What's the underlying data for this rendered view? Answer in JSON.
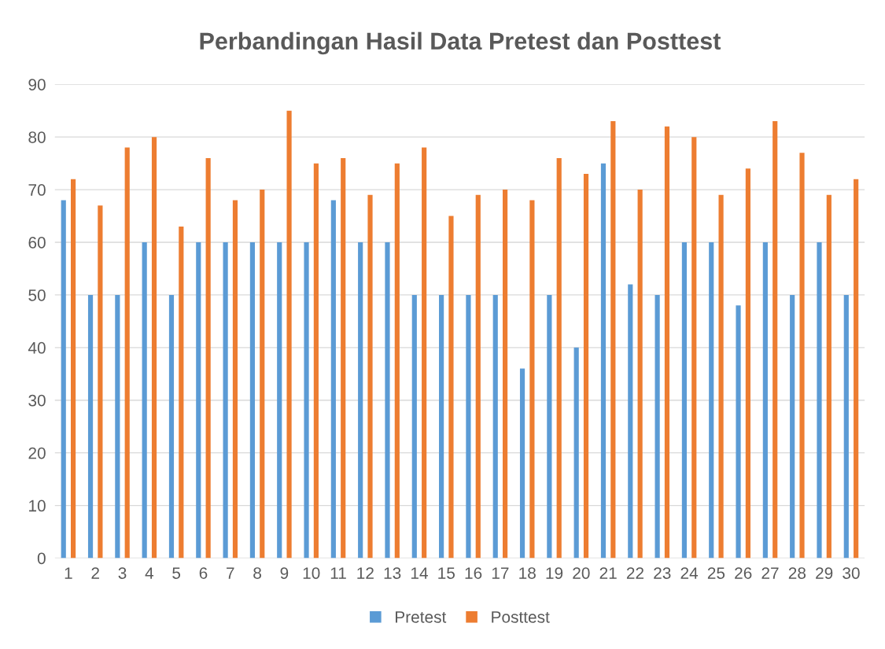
{
  "chart_data": {
    "type": "bar",
    "title": "Perbandingan Hasil Data Pretest dan Posttest",
    "categories": [
      "1",
      "2",
      "3",
      "4",
      "5",
      "6",
      "7",
      "8",
      "9",
      "10",
      "11",
      "12",
      "13",
      "14",
      "15",
      "16",
      "17",
      "18",
      "19",
      "20",
      "21",
      "22",
      "23",
      "24",
      "25",
      "26",
      "27",
      "28",
      "29",
      "30"
    ],
    "series": [
      {
        "name": "Pretest",
        "color": "#5b9bd5",
        "values": [
          68,
          50,
          50,
          60,
          50,
          60,
          60,
          60,
          60,
          60,
          68,
          60,
          60,
          50,
          50,
          50,
          50,
          36,
          50,
          40,
          75,
          52,
          50,
          60,
          60,
          48,
          60,
          50,
          60,
          50
        ]
      },
      {
        "name": "Posttest",
        "color": "#ed7d31",
        "values": [
          72,
          67,
          78,
          80,
          63,
          76,
          68,
          70,
          85,
          75,
          76,
          69,
          75,
          78,
          65,
          69,
          70,
          68,
          76,
          73,
          83,
          70,
          82,
          80,
          69,
          74,
          83,
          77,
          69,
          72
        ]
      }
    ],
    "ylim": [
      0,
      90
    ],
    "yticks": [
      0,
      10,
      20,
      30,
      40,
      50,
      60,
      70,
      80,
      90
    ],
    "grid": "y",
    "legend": "bottom"
  }
}
